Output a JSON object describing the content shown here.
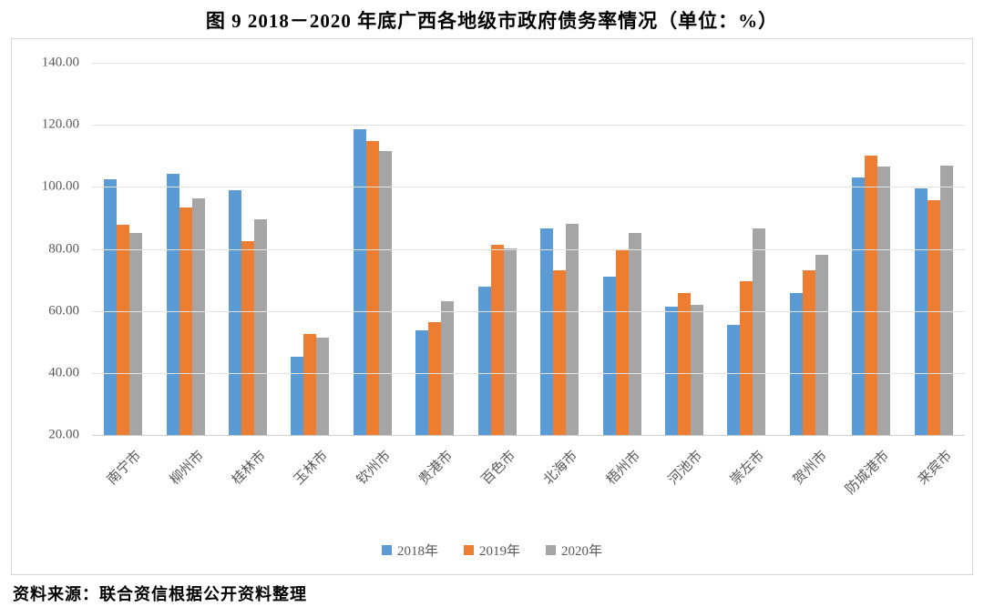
{
  "title": "图 9  2018－2020 年底广西各地级市政府债务率情况（单位：%）",
  "source": "资料来源：联合资信根据公开资料整理",
  "colors": {
    "series_2018": "#5B9BD5",
    "series_2019": "#ED7D31",
    "series_2020": "#A5A5A5",
    "gridline": "#E2E2E2",
    "axis_text": "#595959",
    "frame_border": "#D6D6D6"
  },
  "chart_data": {
    "type": "bar",
    "title": "图 9  2018－2020 年底广西各地级市政府债务率情况（单位：%）",
    "categories": [
      "南宁市",
      "柳州市",
      "桂林市",
      "玉林市",
      "钦州市",
      "贵港市",
      "百色市",
      "北海市",
      "梧州市",
      "河池市",
      "崇左市",
      "贺州市",
      "防城港市",
      "来宾市"
    ],
    "series": [
      {
        "name": "2018年",
        "color": "#5B9BD5",
        "values": [
          102.5,
          104.3,
          99.0,
          45.3,
          118.5,
          53.9,
          67.7,
          86.7,
          71.0,
          61.4,
          55.4,
          65.7,
          103.0,
          99.4
        ]
      },
      {
        "name": "2019年",
        "color": "#ED7D31",
        "values": [
          87.8,
          93.5,
          82.5,
          52.6,
          114.7,
          56.3,
          81.3,
          73.0,
          80.0,
          65.7,
          69.5,
          73.0,
          110.2,
          95.8
        ]
      },
      {
        "name": "2020年",
        "color": "#A5A5A5",
        "values": [
          85.2,
          96.4,
          89.5,
          51.3,
          111.5,
          63.2,
          80.2,
          88.1,
          85.2,
          61.9,
          86.6,
          78.2,
          106.6,
          106.9
        ]
      }
    ],
    "xlabel": "",
    "ylabel": "",
    "ylim": [
      20,
      140
    ],
    "ytick_step": 20,
    "ytick_labels": [
      "140.00",
      "120.00",
      "100.00",
      "80.00",
      "60.00",
      "40.00",
      "20.00"
    ],
    "grid": true,
    "legend_position": "bottom"
  }
}
